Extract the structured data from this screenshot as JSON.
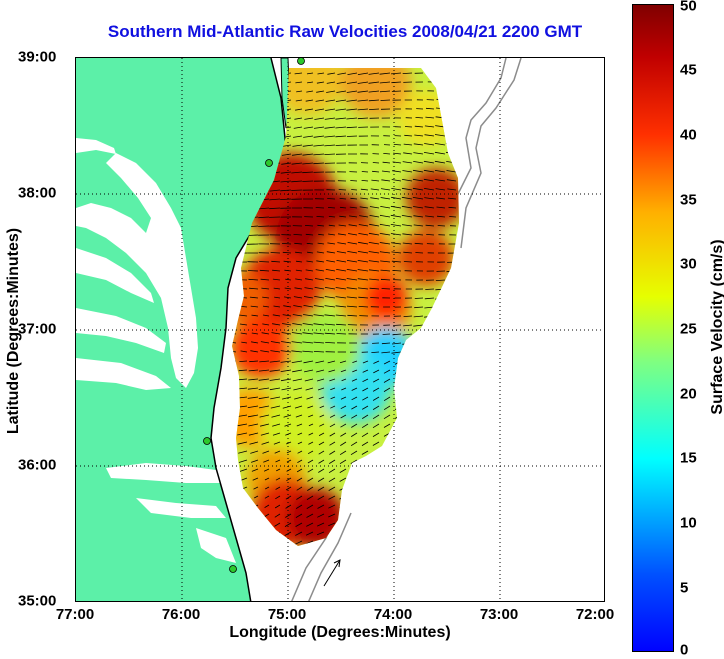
{
  "title": "Southern Mid-Atlantic Raw Velocities 2008/04/21 2200 GMT",
  "chart_data": {
    "type": "heatmap",
    "title": "Southern Mid-Atlantic Raw Velocities 2008/04/21 2200 GMT",
    "xlabel": "Longitude (Degrees:Minutes)",
    "ylabel": "Latitude (Degrees:Minutes)",
    "x_ticks": [
      "77:00",
      "76:00",
      "75:00",
      "74:00",
      "73:00",
      "72:00"
    ],
    "y_ticks": [
      "39:00",
      "38:00",
      "37:00",
      "36:00",
      "35:00"
    ],
    "xlim": [
      -77,
      -72
    ],
    "ylim": [
      35,
      39
    ],
    "grid": true,
    "colorbar": {
      "label": "Surface Velocity (cm/s)",
      "ticks": [
        "50",
        "45",
        "40",
        "35",
        "30",
        "25",
        "20",
        "15",
        "10",
        "5",
        "0"
      ],
      "range": [
        0,
        50
      ],
      "colormap": "jet"
    },
    "colors": {
      "land": "#5cf0a8",
      "coast": "#000000",
      "bathymetry": "#8c8c8c",
      "station": "#2cc82c",
      "title": "#1010e0"
    }
  }
}
